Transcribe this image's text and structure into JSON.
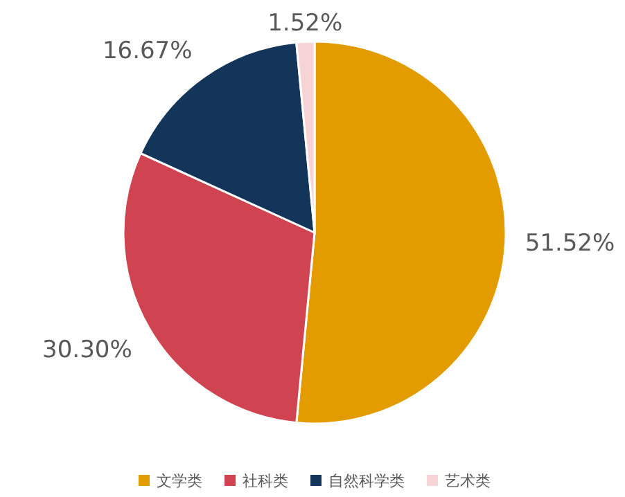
{
  "chart_data": {
    "type": "pie",
    "categories": [
      "文学类",
      "社科类",
      "自然科学类",
      "艺术类"
    ],
    "values": [
      51.52,
      30.3,
      16.67,
      1.52
    ],
    "value_labels": [
      "51.52%",
      "30.30%",
      "16.67%",
      "1.52%"
    ],
    "colors": [
      "#e39c00",
      "#cf4450",
      "#14355a",
      "#f6d3d5"
    ],
    "legend": "bottom"
  }
}
